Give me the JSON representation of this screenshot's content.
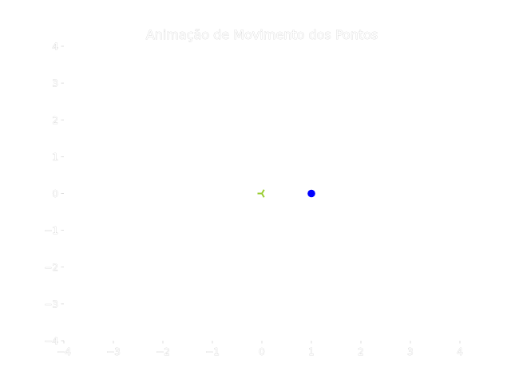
{
  "chart_data": {
    "type": "scatter",
    "title": "Animação de Movimento dos Pontos",
    "xlabel": "",
    "ylabel": "",
    "xlim": [
      -4,
      4
    ],
    "ylim": [
      -4,
      4
    ],
    "grid": false,
    "x_ticks": [
      -4,
      -3,
      -2,
      -1,
      0,
      1,
      2,
      3,
      4
    ],
    "y_ticks": [
      -4,
      -3,
      -2,
      -1,
      0,
      1,
      2,
      3,
      4
    ],
    "x_tick_labels": [
      "−4",
      "−3",
      "−2",
      "−1",
      "0",
      "1",
      "2",
      "3",
      "4"
    ],
    "y_tick_labels": [
      "−4",
      "−3",
      "−2",
      "−1",
      "0",
      "1",
      "2",
      "3",
      "4"
    ],
    "series": [
      {
        "marker": "tri_left",
        "color": "#9acd32",
        "points": [
          {
            "x": 0,
            "y": 0
          }
        ]
      },
      {
        "marker": "circle",
        "color": "#0000ff",
        "points": [
          {
            "x": 1,
            "y": 0
          }
        ]
      }
    ]
  }
}
